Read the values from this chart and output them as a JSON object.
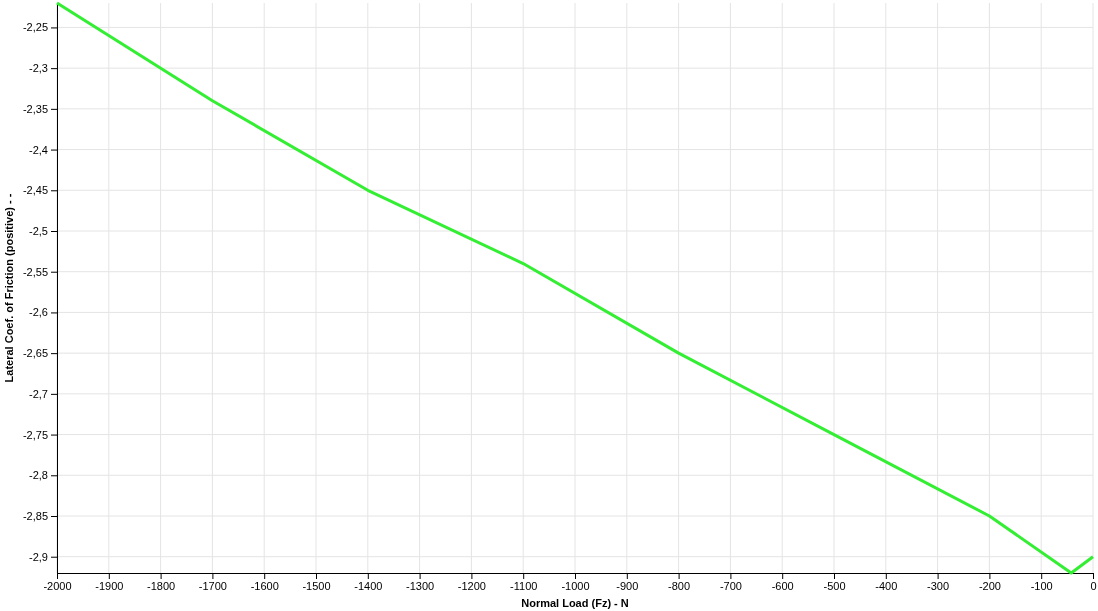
{
  "chart_data": {
    "type": "line",
    "xlabel": "Normal Load (Fz) - N",
    "ylabel": "Lateral Coef. of Friction (positive) - -",
    "x": [
      -2000,
      -1700,
      -1400,
      -1100,
      -800,
      -500,
      -200,
      -42,
      0
    ],
    "series": [
      {
        "color": "#33ee33",
        "values": [
          -2.22,
          -2.34,
          -2.45,
          -2.54,
          -2.65,
          -2.75,
          -2.85,
          -2.92,
          -2.9
        ]
      }
    ],
    "xlim": [
      -2000,
      0
    ],
    "ylim": [
      -2.92,
      -2.22
    ],
    "xticks": [
      -2000,
      -1900,
      -1800,
      -1700,
      -1600,
      -1500,
      -1400,
      -1300,
      -1200,
      -1100,
      -1000,
      -900,
      -800,
      -700,
      -600,
      -500,
      -400,
      -300,
      -200,
      -100,
      0
    ],
    "yticks": [
      {
        "value": -2.25,
        "label": "-2,25"
      },
      {
        "value": -2.3,
        "label": "-2,3"
      },
      {
        "value": -2.35,
        "label": "-2,35"
      },
      {
        "value": -2.4,
        "label": "-2,4"
      },
      {
        "value": -2.45,
        "label": "-2,45"
      },
      {
        "value": -2.5,
        "label": "-2,5"
      },
      {
        "value": -2.55,
        "label": "-2,55"
      },
      {
        "value": -2.6,
        "label": "-2,6"
      },
      {
        "value": -2.65,
        "label": "-2,65"
      },
      {
        "value": -2.7,
        "label": "-2,7"
      },
      {
        "value": -2.75,
        "label": "-2,75"
      },
      {
        "value": -2.8,
        "label": "-2,8"
      },
      {
        "value": -2.85,
        "label": "-2,85"
      },
      {
        "value": -2.9,
        "label": "-2,9"
      }
    ],
    "grid": true,
    "marker": "none",
    "line_style": "solid"
  }
}
